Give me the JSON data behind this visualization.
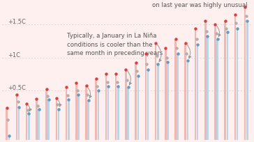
{
  "background_color": "#fdf0ee",
  "bar_color_red": "#f0b8b2",
  "bar_color_blue": "#bad4e8",
  "dot_color_red": "#d94040",
  "dot_color_blue": "#5a9ec9",
  "dot_color_gray": "#b0b0b0",
  "annotation1": "Typically, a January in La Niña\nconditions is cooler than the\nsame month in preceding years",
  "annotation2": "on last year was highly unusual",
  "grid_color": "#e8c8c2",
  "ymin": -0.25,
  "ymax": 1.85,
  "ytick_vals": [
    0.5,
    1.0,
    1.5
  ],
  "ytick_labels": [
    "+0.5C",
    "+1C",
    "+1.5C"
  ],
  "years_data": [
    {
      "red": 0.24,
      "blue": -0.18,
      "gray": 0.06,
      "arrow": false
    },
    {
      "red": 0.44,
      "blue": 0.25,
      "gray": 0.33,
      "arrow": false
    },
    {
      "red": 0.3,
      "blue": 0.15,
      "gray": 0.2,
      "arrow": true
    },
    {
      "red": 0.37,
      "blue": 0.22,
      "gray": 0.27,
      "arrow": false
    },
    {
      "red": 0.52,
      "blue": 0.36,
      "gray": 0.42,
      "arrow": false
    },
    {
      "red": 0.38,
      "blue": 0.22,
      "gray": 0.29,
      "arrow": true
    },
    {
      "red": 0.55,
      "blue": 0.36,
      "gray": 0.43,
      "arrow": false
    },
    {
      "red": 0.62,
      "blue": 0.44,
      "gray": 0.5,
      "arrow": false
    },
    {
      "red": 0.57,
      "blue": 0.35,
      "gray": 0.44,
      "arrow": true
    },
    {
      "red": 0.68,
      "blue": 0.5,
      "gray": 0.56,
      "arrow": false
    },
    {
      "red": 0.75,
      "blue": 0.56,
      "gray": 0.63,
      "arrow": false
    },
    {
      "red": 0.75,
      "blue": 0.56,
      "gray": 0.63,
      "arrow": false
    },
    {
      "red": 0.82,
      "blue": 0.55,
      "gray": 0.66,
      "arrow": true
    },
    {
      "red": 0.92,
      "blue": 0.72,
      "gray": 0.79,
      "arrow": false
    },
    {
      "red": 1.06,
      "blue": 0.82,
      "gray": 0.9,
      "arrow": false
    },
    {
      "red": 1.22,
      "blue": 0.9,
      "gray": 1.03,
      "arrow": true
    },
    {
      "red": 1.14,
      "blue": 0.93,
      "gray": 1.0,
      "arrow": false
    },
    {
      "red": 1.28,
      "blue": 1.06,
      "gray": 1.14,
      "arrow": false
    },
    {
      "red": 1.22,
      "blue": 0.95,
      "gray": 1.06,
      "arrow": true
    },
    {
      "red": 1.44,
      "blue": 1.2,
      "gray": 1.28,
      "arrow": false
    },
    {
      "red": 1.55,
      "blue": 1.32,
      "gray": 1.4,
      "arrow": false
    },
    {
      "red": 1.5,
      "blue": 1.28,
      "gray": 1.36,
      "arrow": true
    },
    {
      "red": 1.55,
      "blue": 1.38,
      "gray": 1.44,
      "arrow": false
    },
    {
      "red": 1.65,
      "blue": 1.44,
      "gray": 1.52,
      "arrow": false
    },
    {
      "red": 1.76,
      "blue": 1.55,
      "gray": 1.63,
      "arrow": false
    }
  ]
}
